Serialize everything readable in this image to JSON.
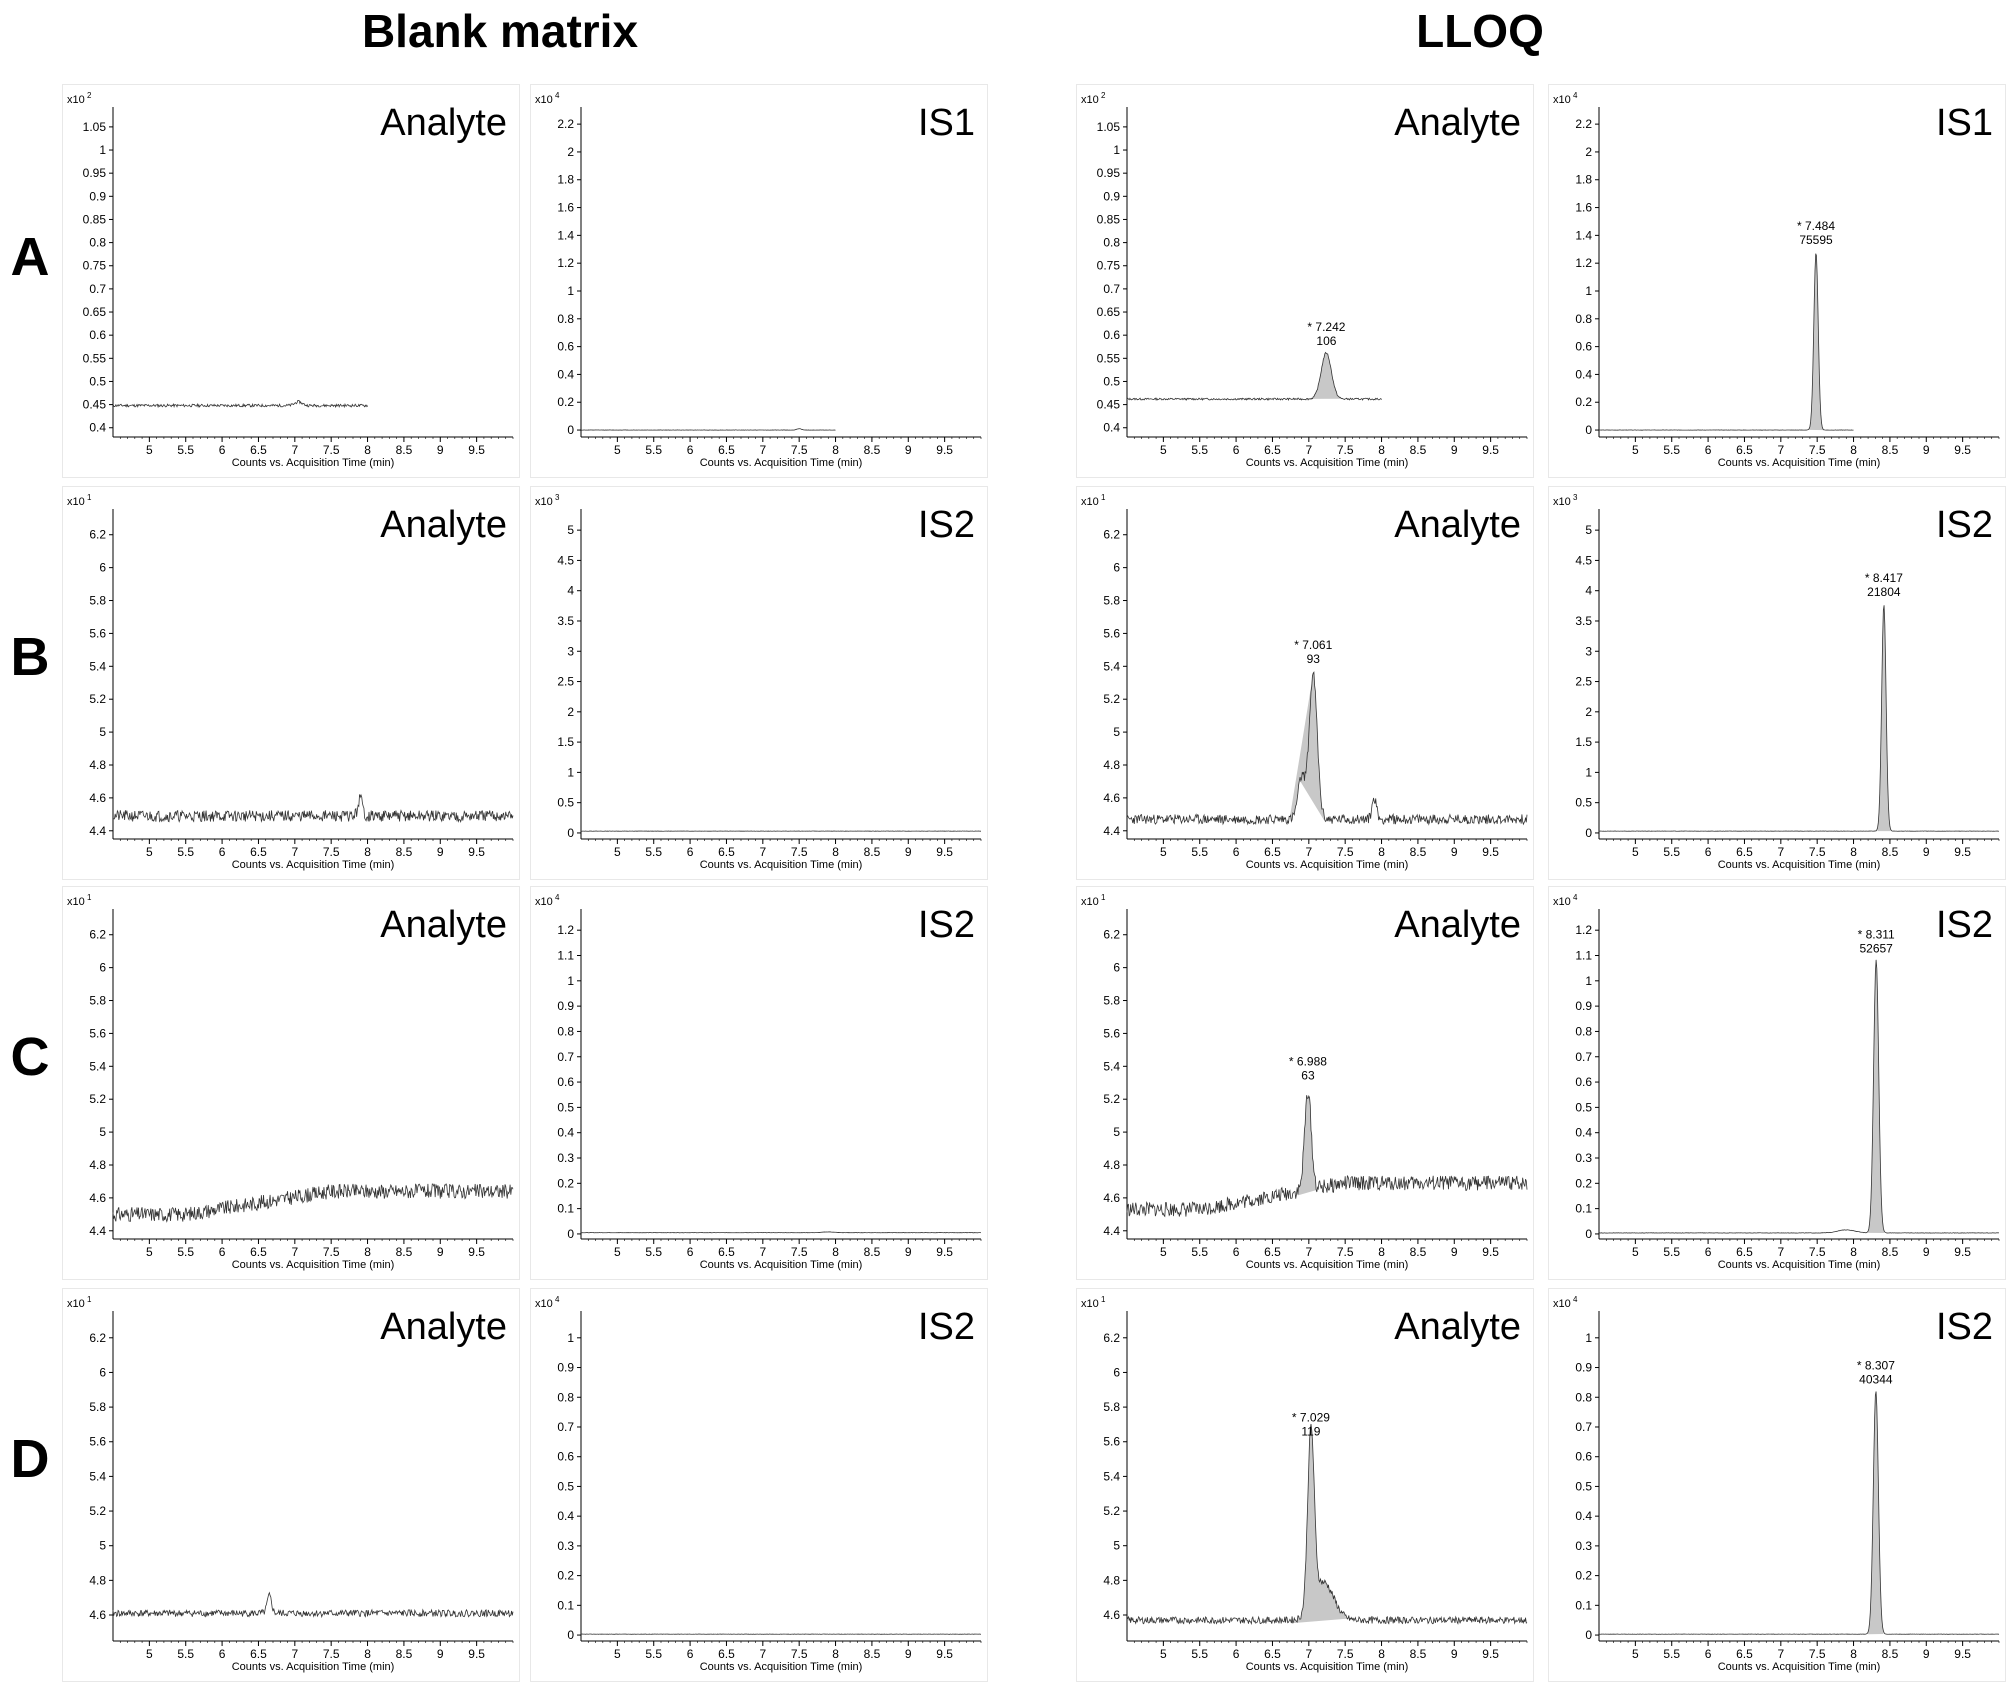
{
  "headers": {
    "blank": "Blank matrix",
    "lloq": "LLOQ"
  },
  "row_labels": [
    "A",
    "B",
    "C",
    "D"
  ],
  "chart_data": [
    {
      "type": "line",
      "row": "A",
      "condition": "Blank matrix",
      "title": "Analyte",
      "exponent_label": "x10",
      "exponent": "2",
      "xlabel": "Counts vs. Acquisition Time (min)",
      "xlim": [
        4.5,
        10
      ],
      "x_ticks": [
        "5",
        "5.5",
        "6",
        "6.5",
        "7",
        "7.5",
        "8",
        "8.5",
        "9",
        "9.5"
      ],
      "ylim": [
        0.38,
        1.08
      ],
      "y_ticks": [
        "0.4",
        "0.45",
        "0.5",
        "0.55",
        "0.6",
        "0.65",
        "0.7",
        "0.75",
        "0.8",
        "0.85",
        "0.9",
        "0.95",
        "1",
        "1.05"
      ],
      "trace_x_end": 8.0,
      "baseline": 0.448,
      "noise": 0.003,
      "seed": 11,
      "peaks": [
        {
          "x": 7.05,
          "height": 0.008,
          "sigma": 0.05
        }
      ],
      "annotation": null
    },
    {
      "type": "line",
      "row": "A",
      "condition": "Blank matrix",
      "title": "IS1",
      "exponent_label": "x10",
      "exponent": "4",
      "xlabel": "Counts vs. Acquisition Time (min)",
      "xlim": [
        4.5,
        10
      ],
      "x_ticks": [
        "5",
        "5.5",
        "6",
        "6.5",
        "7",
        "7.5",
        "8",
        "8.5",
        "9",
        "9.5"
      ],
      "ylim": [
        -0.05,
        2.28
      ],
      "y_ticks": [
        "0",
        "0.2",
        "0.4",
        "0.6",
        "0.8",
        "1",
        "1.2",
        "1.4",
        "1.6",
        "1.8",
        "2",
        "2.2"
      ],
      "trace_x_end": 8.0,
      "baseline": 0.0,
      "noise": 0.001,
      "seed": 12,
      "peaks": [
        {
          "x": 7.5,
          "height": 0.01,
          "sigma": 0.03
        }
      ],
      "annotation": null
    },
    {
      "type": "line",
      "row": "A",
      "condition": "LLOQ",
      "title": "Analyte",
      "exponent_label": "x10",
      "exponent": "2",
      "xlabel": "Counts vs. Acquisition Time (min)",
      "xlim": [
        4.5,
        10
      ],
      "x_ticks": [
        "5",
        "5.5",
        "6",
        "6.5",
        "7",
        "7.5",
        "8",
        "8.5",
        "9",
        "9.5"
      ],
      "ylim": [
        0.38,
        1.08
      ],
      "y_ticks": [
        "0.4",
        "0.45",
        "0.5",
        "0.55",
        "0.6",
        "0.65",
        "0.7",
        "0.75",
        "0.8",
        "0.85",
        "0.9",
        "0.95",
        "1",
        "1.05"
      ],
      "trace_x_end": 8.0,
      "baseline": 0.462,
      "noise": 0.002,
      "seed": 13,
      "peaks": [
        {
          "x": 7.24,
          "height": 0.1,
          "sigma": 0.07,
          "fill": true
        }
      ],
      "annotation": {
        "x": 7.242,
        "y": 0.562,
        "line1": "* 7.242",
        "line2": "106"
      }
    },
    {
      "type": "line",
      "row": "A",
      "condition": "LLOQ",
      "title": "IS1",
      "exponent_label": "x10",
      "exponent": "4",
      "xlabel": "Counts vs. Acquisition Time (min)",
      "xlim": [
        4.5,
        10
      ],
      "x_ticks": [
        "5",
        "5.5",
        "6",
        "6.5",
        "7",
        "7.5",
        "8",
        "8.5",
        "9",
        "9.5"
      ],
      "ylim": [
        -0.05,
        2.28
      ],
      "y_ticks": [
        "0",
        "0.2",
        "0.4",
        "0.6",
        "0.8",
        "1",
        "1.2",
        "1.4",
        "1.6",
        "1.8",
        "2",
        "2.2"
      ],
      "trace_x_end": 8.0,
      "baseline": 0.0,
      "noise": 0.001,
      "seed": 14,
      "peaks": [
        {
          "x": 7.484,
          "height": 1.28,
          "sigma": 0.03,
          "fill": true
        }
      ],
      "annotation": {
        "x": 7.484,
        "y": 1.28,
        "line1": "* 7.484",
        "line2": "75595"
      }
    },
    {
      "type": "line",
      "row": "B",
      "condition": "Blank matrix",
      "title": "Analyte",
      "exponent_label": "x10",
      "exponent": "1",
      "xlabel": "Counts vs. Acquisition Time (min)",
      "xlim": [
        4.5,
        10
      ],
      "x_ticks": [
        "5",
        "5.5",
        "6",
        "6.5",
        "7",
        "7.5",
        "8",
        "8.5",
        "9",
        "9.5"
      ],
      "ylim": [
        4.35,
        6.32
      ],
      "y_ticks": [
        "4.4",
        "4.6",
        "4.8",
        "5",
        "5.2",
        "5.4",
        "5.6",
        "5.8",
        "6",
        "6.2"
      ],
      "trace_x_end": 10.0,
      "baseline": 4.49,
      "noise": 0.035,
      "seed": 21,
      "peaks": [
        {
          "x": 7.9,
          "height": 0.11,
          "sigma": 0.03
        }
      ],
      "annotation": null
    },
    {
      "type": "line",
      "row": "B",
      "condition": "Blank matrix",
      "title": "IS2",
      "exponent_label": "x10",
      "exponent": "3",
      "xlabel": "Counts vs. Acquisition Time (min)",
      "xlim": [
        4.5,
        10
      ],
      "x_ticks": [
        "5",
        "5.5",
        "6",
        "6.5",
        "7",
        "7.5",
        "8",
        "8.5",
        "9",
        "9.5"
      ],
      "ylim": [
        -0.1,
        5.25
      ],
      "y_ticks": [
        "0",
        "0.5",
        "1",
        "1.5",
        "2",
        "2.5",
        "3",
        "3.5",
        "4",
        "4.5",
        "5"
      ],
      "trace_x_end": 10.0,
      "baseline": 0.03,
      "noise": 0.002,
      "seed": 22,
      "peaks": [],
      "annotation": null
    },
    {
      "type": "line",
      "row": "B",
      "condition": "LLOQ",
      "title": "Analyte",
      "exponent_label": "x10",
      "exponent": "1",
      "xlabel": "Counts vs. Acquisition Time (min)",
      "xlim": [
        4.5,
        10
      ],
      "x_ticks": [
        "5",
        "5.5",
        "6",
        "6.5",
        "7",
        "7.5",
        "8",
        "8.5",
        "9",
        "9.5"
      ],
      "ylim": [
        4.35,
        6.32
      ],
      "y_ticks": [
        "4.4",
        "4.6",
        "4.8",
        "5",
        "5.2",
        "5.4",
        "5.6",
        "5.8",
        "6",
        "6.2"
      ],
      "trace_x_end": 10.0,
      "baseline": 4.47,
      "noise": 0.03,
      "seed": 23,
      "peaks": [
        {
          "x": 7.06,
          "height": 0.88,
          "sigma": 0.055,
          "fill": true
        },
        {
          "x": 6.9,
          "height": 0.25,
          "sigma": 0.05,
          "fill": true
        },
        {
          "x": 7.9,
          "height": 0.13,
          "sigma": 0.03
        }
      ],
      "annotation": {
        "x": 7.061,
        "y": 5.37,
        "line1": "* 7.061",
        "line2": "93"
      }
    },
    {
      "type": "line",
      "row": "B",
      "condition": "LLOQ",
      "title": "IS2",
      "exponent_label": "x10",
      "exponent": "3",
      "xlabel": "Counts vs. Acquisition Time (min)",
      "xlim": [
        4.5,
        10
      ],
      "x_ticks": [
        "5",
        "5.5",
        "6",
        "6.5",
        "7",
        "7.5",
        "8",
        "8.5",
        "9",
        "9.5"
      ],
      "ylim": [
        -0.1,
        5.25
      ],
      "y_ticks": [
        "0",
        "0.5",
        "1",
        "1.5",
        "2",
        "2.5",
        "3",
        "3.5",
        "4",
        "4.5",
        "5"
      ],
      "trace_x_end": 10.0,
      "baseline": 0.03,
      "noise": 0.002,
      "seed": 24,
      "peaks": [
        {
          "x": 8.417,
          "height": 3.75,
          "sigma": 0.03,
          "fill": true
        }
      ],
      "annotation": {
        "x": 8.417,
        "y": 3.78,
        "line1": "* 8.417",
        "line2": "21804"
      }
    },
    {
      "type": "line",
      "row": "C",
      "condition": "Blank matrix",
      "title": "Analyte",
      "exponent_label": "x10",
      "exponent": "1",
      "xlabel": "Counts vs. Acquisition Time (min)",
      "xlim": [
        4.5,
        10
      ],
      "x_ticks": [
        "5",
        "5.5",
        "6",
        "6.5",
        "7",
        "7.5",
        "8",
        "8.5",
        "9",
        "9.5"
      ],
      "ylim": [
        4.35,
        6.32
      ],
      "y_ticks": [
        "4.4",
        "4.6",
        "4.8",
        "5",
        "5.2",
        "5.4",
        "5.6",
        "5.8",
        "6",
        "6.2"
      ],
      "trace_x_end": 10.0,
      "baseline": 4.5,
      "trend": 0.14,
      "noise": 0.045,
      "seed": 31,
      "peaks": [],
      "annotation": null
    },
    {
      "type": "line",
      "row": "C",
      "condition": "Blank matrix",
      "title": "IS2",
      "exponent_label": "x10",
      "exponent": "4",
      "xlabel": "Counts vs. Acquisition Time (min)",
      "xlim": [
        4.5,
        10
      ],
      "x_ticks": [
        "5",
        "5.5",
        "6",
        "6.5",
        "7",
        "7.5",
        "8",
        "8.5",
        "9",
        "9.5"
      ],
      "ylim": [
        -0.02,
        1.26
      ],
      "y_ticks": [
        "0",
        "0.1",
        "0.2",
        "0.3",
        "0.4",
        "0.5",
        "0.6",
        "0.7",
        "0.8",
        "0.9",
        "1",
        "1.1",
        "1.2"
      ],
      "trace_x_end": 10.0,
      "baseline": 0.005,
      "noise": 0.0005,
      "seed": 32,
      "peaks": [
        {
          "x": 7.9,
          "height": 0.003,
          "sigma": 0.08
        }
      ],
      "annotation": null
    },
    {
      "type": "line",
      "row": "C",
      "condition": "LLOQ",
      "title": "Analyte",
      "exponent_label": "x10",
      "exponent": "1",
      "xlabel": "Counts vs. Acquisition Time (min)",
      "xlim": [
        4.5,
        10
      ],
      "x_ticks": [
        "5",
        "5.5",
        "6",
        "6.5",
        "7",
        "7.5",
        "8",
        "8.5",
        "9",
        "9.5"
      ],
      "ylim": [
        4.35,
        6.32
      ],
      "y_ticks": [
        "4.4",
        "4.6",
        "4.8",
        "5",
        "5.2",
        "5.4",
        "5.6",
        "5.8",
        "6",
        "6.2"
      ],
      "trace_x_end": 10.0,
      "baseline": 4.53,
      "trend": 0.16,
      "noise": 0.045,
      "seed": 33,
      "peaks": [
        {
          "x": 6.988,
          "height": 0.6,
          "sigma": 0.045,
          "fill": true
        }
      ],
      "annotation": {
        "x": 6.988,
        "y": 5.27,
        "line1": "* 6.988",
        "line2": "63"
      }
    },
    {
      "type": "line",
      "row": "C",
      "condition": "LLOQ",
      "title": "IS2",
      "exponent_label": "x10",
      "exponent": "4",
      "xlabel": "Counts vs. Acquisition Time (min)",
      "xlim": [
        4.5,
        10
      ],
      "x_ticks": [
        "5",
        "5.5",
        "6",
        "6.5",
        "7",
        "7.5",
        "8",
        "8.5",
        "9",
        "9.5"
      ],
      "ylim": [
        -0.02,
        1.26
      ],
      "y_ticks": [
        "0",
        "0.1",
        "0.2",
        "0.3",
        "0.4",
        "0.5",
        "0.6",
        "0.7",
        "0.8",
        "0.9",
        "1",
        "1.1",
        "1.2"
      ],
      "trace_x_end": 10.0,
      "baseline": 0.004,
      "noise": 0.0008,
      "seed": 34,
      "peaks": [
        {
          "x": 8.311,
          "height": 1.08,
          "sigma": 0.035,
          "fill": true
        },
        {
          "x": 7.9,
          "height": 0.012,
          "sigma": 0.12
        }
      ],
      "annotation": {
        "x": 8.311,
        "y": 1.08,
        "line1": "* 8.311",
        "line2": "52657"
      }
    },
    {
      "type": "line",
      "row": "D",
      "condition": "Blank matrix",
      "title": "Analyte",
      "exponent_label": "x10",
      "exponent": "1",
      "xlabel": "Counts vs. Acquisition Time (min)",
      "xlim": [
        4.5,
        10
      ],
      "x_ticks": [
        "5",
        "5.5",
        "6",
        "6.5",
        "7",
        "7.5",
        "8",
        "8.5",
        "9",
        "9.5"
      ],
      "ylim": [
        4.45,
        6.32
      ],
      "y_ticks": [
        "4.6",
        "4.8",
        "5",
        "5.2",
        "5.4",
        "5.6",
        "5.8",
        "6",
        "6.2"
      ],
      "trace_x_end": 10.0,
      "baseline": 4.61,
      "noise": 0.02,
      "seed": 41,
      "peaks": [
        {
          "x": 6.65,
          "height": 0.1,
          "sigma": 0.03
        }
      ],
      "annotation": null
    },
    {
      "type": "line",
      "row": "D",
      "condition": "Blank matrix",
      "title": "IS2",
      "exponent_label": "x10",
      "exponent": "4",
      "xlabel": "Counts vs. Acquisition Time (min)",
      "xlim": [
        4.5,
        10
      ],
      "x_ticks": [
        "5",
        "5.5",
        "6",
        "6.5",
        "7",
        "7.5",
        "8",
        "8.5",
        "9",
        "9.5"
      ],
      "ylim": [
        -0.02,
        1.07
      ],
      "y_ticks": [
        "0",
        "0.1",
        "0.2",
        "0.3",
        "0.4",
        "0.5",
        "0.6",
        "0.7",
        "0.8",
        "0.9",
        "1"
      ],
      "trace_x_end": 10.0,
      "baseline": 0.003,
      "noise": 0.0005,
      "seed": 42,
      "peaks": [],
      "annotation": null
    },
    {
      "type": "line",
      "row": "D",
      "condition": "LLOQ",
      "title": "Analyte",
      "exponent_label": "x10",
      "exponent": "1",
      "xlabel": "Counts vs. Acquisition Time (min)",
      "xlim": [
        4.5,
        10
      ],
      "x_ticks": [
        "5",
        "5.5",
        "6",
        "6.5",
        "7",
        "7.5",
        "8",
        "8.5",
        "9",
        "9.5"
      ],
      "ylim": [
        4.45,
        6.32
      ],
      "y_ticks": [
        "4.6",
        "4.8",
        "5",
        "5.2",
        "5.4",
        "5.6",
        "5.8",
        "6",
        "6.2"
      ],
      "trace_x_end": 10.0,
      "baseline": 4.57,
      "noise": 0.02,
      "seed": 43,
      "peaks": [
        {
          "x": 7.029,
          "height": 1.02,
          "sigma": 0.045,
          "fill": true
        },
        {
          "x": 7.2,
          "height": 0.22,
          "sigma": 0.14,
          "fill": true
        }
      ],
      "annotation": {
        "x": 7.029,
        "y": 5.59,
        "line1": "* 7.029",
        "line2": "119"
      }
    },
    {
      "type": "line",
      "row": "D",
      "condition": "LLOQ",
      "title": "IS2",
      "exponent_label": "x10",
      "exponent": "4",
      "xlabel": "Counts vs. Acquisition Time (min)",
      "xlim": [
        4.5,
        10
      ],
      "x_ticks": [
        "5",
        "5.5",
        "6",
        "6.5",
        "7",
        "7.5",
        "8",
        "8.5",
        "9",
        "9.5"
      ],
      "ylim": [
        -0.02,
        1.07
      ],
      "y_ticks": [
        "0",
        "0.1",
        "0.2",
        "0.3",
        "0.4",
        "0.5",
        "0.6",
        "0.7",
        "0.8",
        "0.9",
        "1"
      ],
      "trace_x_end": 10.0,
      "baseline": 0.003,
      "noise": 0.0005,
      "seed": 44,
      "peaks": [
        {
          "x": 8.307,
          "height": 0.82,
          "sigma": 0.035,
          "fill": true
        }
      ],
      "annotation": {
        "x": 8.307,
        "y": 0.82,
        "line1": "* 8.307",
        "line2": "40344"
      }
    }
  ]
}
